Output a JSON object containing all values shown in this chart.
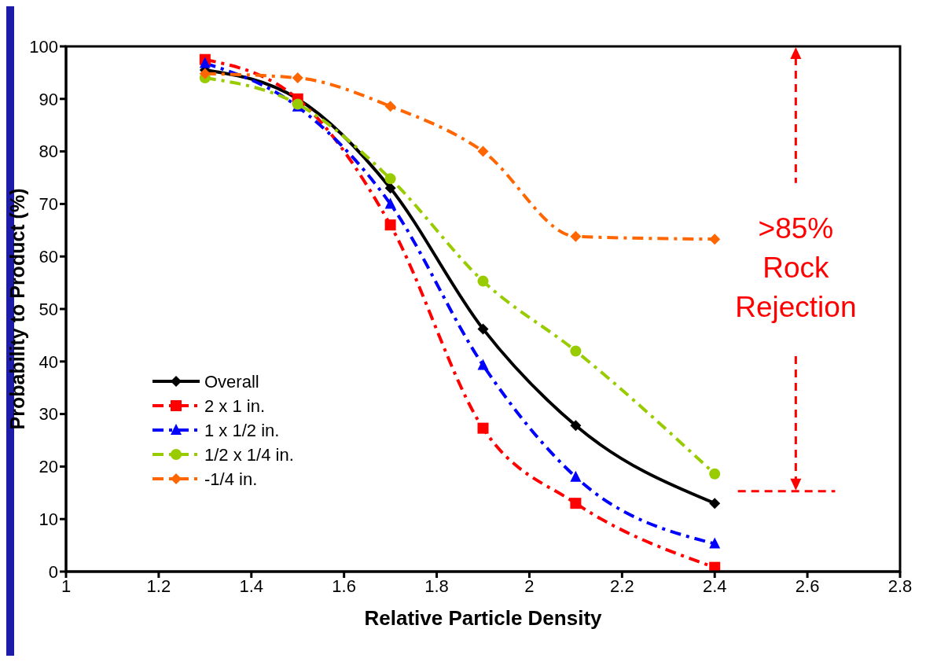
{
  "chart_data": {
    "type": "line",
    "xlabel": "Relative Particle Density",
    "ylabel": "Probability to Product (%)",
    "x": [
      1.3,
      1.5,
      1.7,
      1.9,
      2.1,
      2.4
    ],
    "xlim": [
      1,
      2.8
    ],
    "xticks": [
      1,
      1.2,
      1.4,
      1.6,
      1.8,
      2,
      2.2,
      2.4,
      2.6,
      2.8
    ],
    "ylim": [
      0,
      100
    ],
    "yticks": [
      0,
      10,
      20,
      30,
      40,
      50,
      60,
      70,
      80,
      90,
      100
    ],
    "grid": false,
    "legend": "bottom left",
    "series": [
      {
        "name": "Overall",
        "color": "#000000",
        "marker": "diamond",
        "line_style": "solid",
        "values": [
          95.5,
          90,
          73,
          46.2,
          27.8,
          13
        ]
      },
      {
        "name": "2 x 1 in.",
        "color": "#ff0000",
        "marker": "square",
        "line_style": "dashed",
        "values": [
          97.5,
          90,
          66,
          27.3,
          13,
          0.8
        ]
      },
      {
        "name": "1 x 1/2 in.",
        "color": "#0000ff",
        "marker": "triangle",
        "line_style": "dashed",
        "values": [
          96.8,
          88.5,
          70,
          39.3,
          18,
          5.3
        ]
      },
      {
        "name": "1/2 x 1/4 in.",
        "color": "#99cc00",
        "marker": "circle",
        "line_style": "dashed",
        "values": [
          94,
          89,
          74.8,
          55.3,
          42,
          18.6
        ]
      },
      {
        "name": "-1/4 in.",
        "color": "#ff6600",
        "marker": "diamond",
        "line_style": "dashed",
        "values": [
          94.8,
          94,
          88.6,
          80,
          63.8,
          63.3
        ]
      }
    ],
    "annotations": [
      ">85% Rock Rejection"
    ]
  }
}
